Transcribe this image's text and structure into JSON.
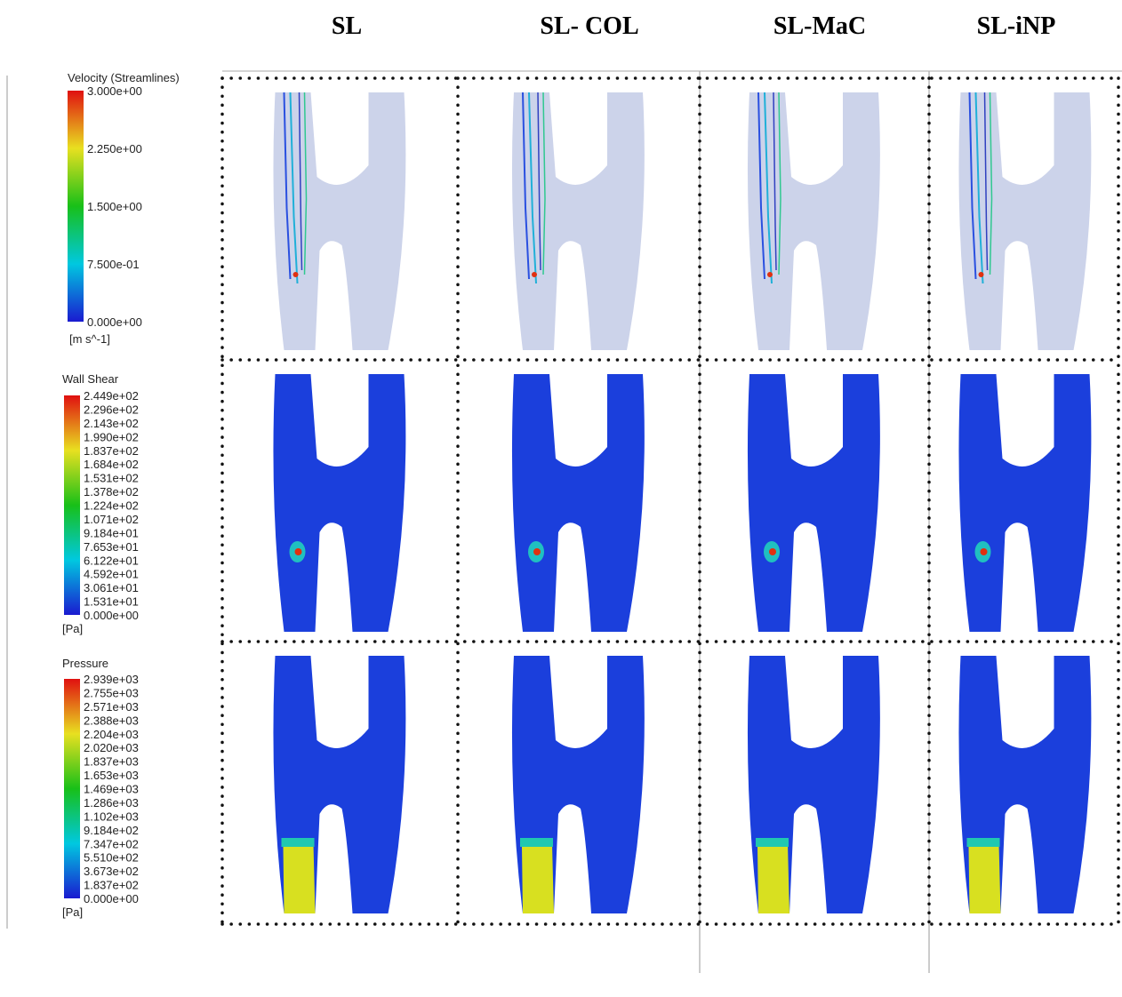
{
  "headers": [
    "SL",
    "SL- COL",
    "SL-MaC",
    "SL-iNP"
  ],
  "legends": [
    {
      "title": "Velocity (Streamlines)",
      "labels": [
        "3.000e+00",
        "2.250e+00",
        "1.500e+00",
        "7.500e-01",
        "0.000e+00"
      ],
      "unit": "[m s^-1]"
    },
    {
      "title": "Wall Shear",
      "labels": [
        "2.449e+02",
        "2.296e+02",
        "2.143e+02",
        "1.990e+02",
        "1.837e+02",
        "1.684e+02",
        "1.531e+02",
        "1.378e+02",
        "1.224e+02",
        "1.071e+02",
        "9.184e+01",
        "7.653e+01",
        "6.122e+01",
        "4.592e+01",
        "3.061e+01",
        "1.531e+01",
        "0.000e+00"
      ],
      "unit": "[Pa]"
    },
    {
      "title": "Pressure",
      "labels": [
        "2.939e+03",
        "2.755e+03",
        "2.571e+03",
        "2.388e+03",
        "2.204e+03",
        "2.020e+03",
        "1.837e+03",
        "1.653e+03",
        "1.469e+03",
        "1.286e+03",
        "1.102e+03",
        "9.184e+02",
        "7.347e+02",
        "5.510e+02",
        "3.673e+02",
        "1.837e+02",
        "0.000e+00"
      ],
      "unit": "[Pa]"
    }
  ]
}
